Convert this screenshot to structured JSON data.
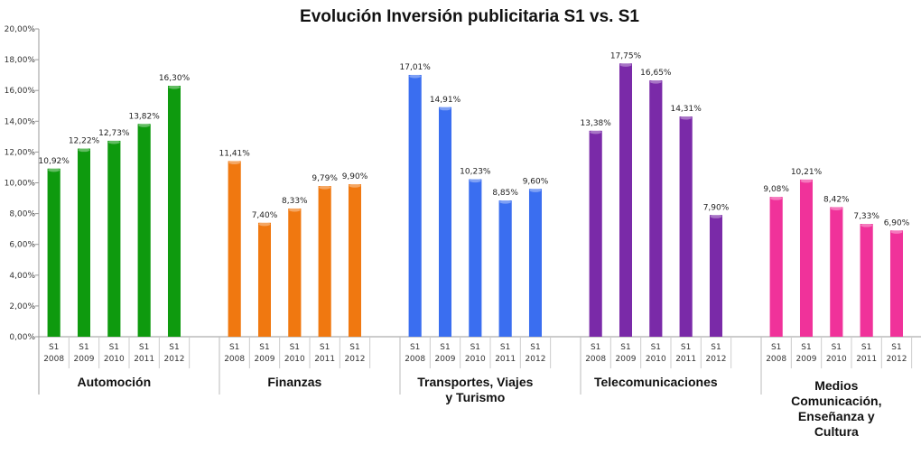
{
  "chart_data": {
    "type": "bar",
    "title": "Evolución Inversión publicitaria S1 vs. S1",
    "ylim": [
      0,
      20
    ],
    "yticks": [
      "0,00%",
      "2,00%",
      "4,00%",
      "6,00%",
      "8,00%",
      "10,00%",
      "12,00%",
      "14,00%",
      "16,00%",
      "18,00%",
      "20,00%"
    ],
    "subcategories": [
      [
        "S1",
        "2008"
      ],
      [
        "S1",
        "2009"
      ],
      [
        "S1",
        "2010"
      ],
      [
        "S1",
        "2011"
      ],
      [
        "S1",
        "2012"
      ]
    ],
    "grid": false,
    "legend": "none",
    "groups": [
      {
        "name": [
          "Automoción"
        ],
        "color": "#0e9a0e",
        "values": [
          10.92,
          12.22,
          12.73,
          13.82,
          16.3
        ],
        "labels": [
          "10,92%",
          "12,22%",
          "12,73%",
          "13,82%",
          "16,30%"
        ]
      },
      {
        "name": [
          "Finanzas"
        ],
        "color": "#f07810",
        "values": [
          11.41,
          7.4,
          8.33,
          9.79,
          9.9
        ],
        "labels": [
          "11,41%",
          "7,40%",
          "8,33%",
          "9,79%",
          "9,90%"
        ]
      },
      {
        "name": [
          "Transportes, Viajes",
          "y Turismo"
        ],
        "color": "#3a6ef0",
        "values": [
          17.01,
          14.91,
          10.23,
          8.85,
          9.6
        ],
        "labels": [
          "17,01%",
          "14,91%",
          "10,23%",
          "8,85%",
          "9,60%"
        ]
      },
      {
        "name": [
          "Telecomunicaciones"
        ],
        "color": "#7a2aa8",
        "values": [
          13.38,
          17.75,
          16.65,
          14.31,
          7.9
        ],
        "labels": [
          "13,38%",
          "17,75%",
          "16,65%",
          "14,31%",
          "7,90%"
        ]
      },
      {
        "name": [
          "Medios",
          "Comunicación,",
          "Enseñanza y",
          "Cultura"
        ],
        "color": "#f0329a",
        "values": [
          9.08,
          10.21,
          8.42,
          7.33,
          6.9
        ],
        "labels": [
          "9,08%",
          "10,21%",
          "8,42%",
          "7,33%",
          "6,90%"
        ]
      }
    ]
  }
}
